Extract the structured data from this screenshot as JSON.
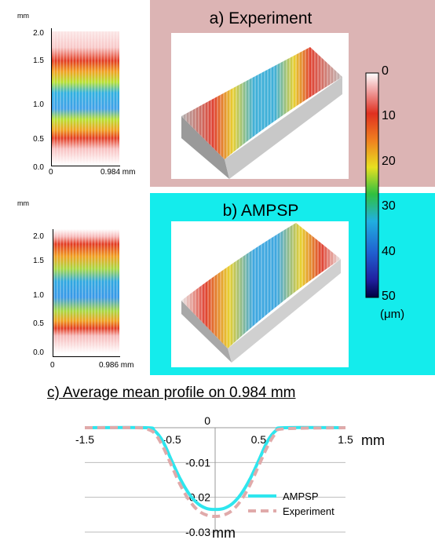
{
  "panel_a": {
    "title": "a) Experiment",
    "map_unit": "mm",
    "y_ticks": [
      "2.0",
      "1.5",
      "1.0",
      "0.5",
      "0.0"
    ],
    "x_ticks": [
      "0",
      "0.984 mm"
    ]
  },
  "panel_b": {
    "title": "b) AMPSP",
    "map_unit": "mm",
    "y_ticks": [
      "2.0",
      "1.5",
      "1.0",
      "0.5",
      "0.0"
    ],
    "x_ticks": [
      "0",
      "0.986 mm"
    ]
  },
  "colorbar": {
    "ticks": [
      "0",
      "10",
      "20",
      "30",
      "40",
      "50"
    ],
    "unit": "(μm)",
    "colors": [
      "#ffffff",
      "#e03020",
      "#f08020",
      "#e8e020",
      "#30c040",
      "#20b0e0",
      "#2060d0",
      "#000060"
    ]
  },
  "chart_data": {
    "type": "line",
    "title": "c) Average  mean profile on 0.984 mm",
    "xlabel": "mm",
    "ylabel": "mm",
    "xlim": [
      -1.5,
      1.5
    ],
    "ylim": [
      -0.03,
      0
    ],
    "x_ticks": [
      "-1.5",
      "-0.5",
      "0.5",
      "1.5"
    ],
    "y_ticks": [
      "0",
      "-0.01",
      "-0.02",
      "-0.03"
    ],
    "legend_position": "bottom-right",
    "series": [
      {
        "name": "AMPSP",
        "color": "#2ee6ee",
        "x": [
          -1.5,
          -0.8,
          -0.7,
          -0.6,
          -0.5,
          -0.4,
          -0.3,
          -0.2,
          -0.1,
          0.0,
          0.1,
          0.2,
          0.3,
          0.4,
          0.5,
          0.6,
          0.7,
          0.8,
          1.5
        ],
        "y": [
          0,
          0,
          -0.0008,
          -0.004,
          -0.0095,
          -0.0148,
          -0.019,
          -0.0218,
          -0.0232,
          -0.0235,
          -0.0232,
          -0.0218,
          -0.019,
          -0.0148,
          -0.0095,
          -0.004,
          -0.0008,
          0,
          0
        ]
      },
      {
        "name": "Experiment",
        "color": "#e0aaaa",
        "x": [
          -1.5,
          -0.9,
          -0.8,
          -0.7,
          -0.6,
          -0.5,
          -0.4,
          -0.3,
          -0.2,
          -0.1,
          0.0,
          0.1,
          0.2,
          0.3,
          0.4,
          0.5,
          0.6,
          0.7,
          0.8,
          1.5
        ],
        "y": [
          0,
          0,
          -0.0003,
          -0.0015,
          -0.0055,
          -0.011,
          -0.0165,
          -0.0208,
          -0.0237,
          -0.0251,
          -0.0255,
          -0.0251,
          -0.0237,
          -0.0208,
          -0.0165,
          -0.011,
          -0.0055,
          -0.0015,
          -0.0003,
          0
        ]
      }
    ]
  }
}
